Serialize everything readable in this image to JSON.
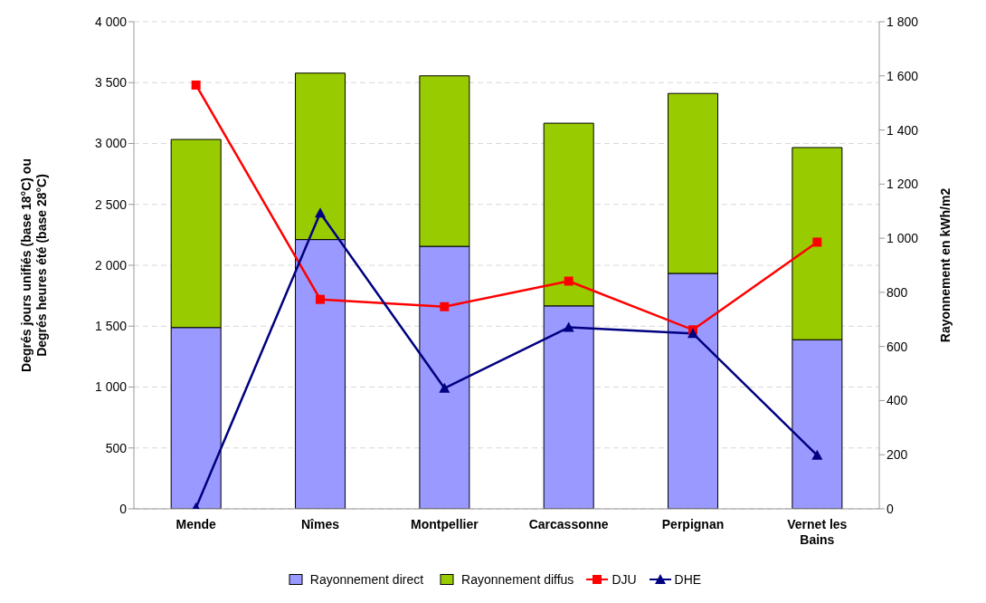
{
  "chart_data": {
    "type": "bar",
    "stacked": true,
    "ylabel": "Degrés jours unifiés (base 18°C) ou Degrés heures été (base 28°C)",
    "y2label": "Rayonnement en kWh/m2",
    "categories": [
      "Mende",
      "Nîmes",
      "Montpellier",
      "Carcassonne",
      "Perpignan",
      "Vernet les Bains"
    ],
    "series": [
      {
        "name": "Rayonnement direct",
        "axis": "y2",
        "color": "#9999ff",
        "values": [
          670,
          995,
          970,
          750,
          870,
          625
        ]
      },
      {
        "name": "Rayonnement diffus",
        "axis": "y2",
        "color": "#99cc00",
        "values": [
          695,
          615,
          630,
          675,
          665,
          710
        ]
      },
      {
        "name": "DJU",
        "type": "line",
        "color": "#ff0000",
        "marker": "square",
        "values": [
          3480,
          1720,
          1660,
          1870,
          1470,
          2190
        ]
      },
      {
        "name": "DHE",
        "type": "line",
        "color": "#000080",
        "marker": "triangle",
        "values": [
          10,
          2430,
          990,
          1490,
          1440,
          440
        ]
      }
    ],
    "ylim": [
      0,
      4000
    ],
    "yticks": [
      0,
      500,
      {
        "value": 1000,
        "label": "1 000"
      },
      {
        "value": 1500,
        "label": "1 500"
      },
      {
        "value": 2000,
        "label": "2 000"
      },
      {
        "value": 2500,
        "label": "2 500"
      },
      {
        "value": 3000,
        "label": "3 000"
      },
      {
        "value": 3500,
        "label": "3 500"
      },
      {
        "value": 4000,
        "label": "4 000"
      }
    ],
    "y2lim": [
      0,
      1800
    ],
    "y2ticks": [
      0,
      200,
      400,
      600,
      800,
      {
        "value": 1000,
        "label": "1 000"
      },
      {
        "value": 1200,
        "label": "1 200"
      },
      {
        "value": 1400,
        "label": "1 400"
      },
      {
        "value": 1600,
        "label": "1 600"
      },
      {
        "value": 1800,
        "label": "1 800"
      }
    ],
    "grid": "y",
    "legend": "bottom"
  }
}
